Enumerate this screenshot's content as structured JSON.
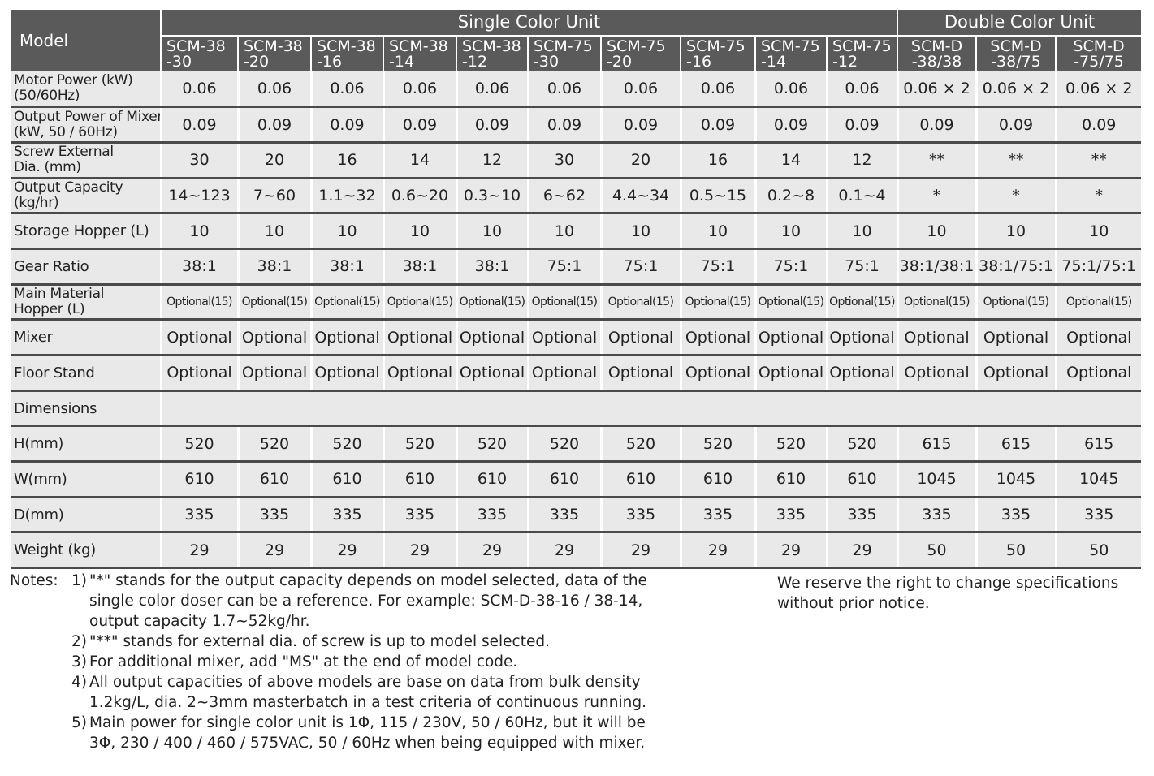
{
  "header": {
    "model": "Model",
    "groups": [
      "Single Color Unit",
      "Double Color Unit"
    ],
    "models": [
      [
        "SCM-38",
        "-30"
      ],
      [
        "SCM-38",
        "-20"
      ],
      [
        "SCM-38",
        "-16"
      ],
      [
        "SCM-38",
        "-14"
      ],
      [
        "SCM-38",
        "-12"
      ],
      [
        "SCM-75",
        "-30"
      ],
      [
        "SCM-75",
        "-20"
      ],
      [
        "SCM-75",
        "-16"
      ],
      [
        "SCM-75",
        "-14"
      ],
      [
        "SCM-75",
        "-12"
      ],
      [
        "SCM-D",
        "-38/38"
      ],
      [
        "SCM-D",
        "-38/75"
      ],
      [
        "SCM-D",
        "-75/75"
      ]
    ]
  },
  "table": {
    "rows": [
      {
        "label": [
          "Motor Power (kW)",
          "(50/60Hz)"
        ],
        "cells": [
          "0.06",
          "0.06",
          "0.06",
          "0.06",
          "0.06",
          "0.06",
          "0.06",
          "0.06",
          "0.06",
          "0.06",
          "0.06 × 2",
          "0.06 × 2",
          "0.06 × 2"
        ]
      },
      {
        "label": [
          "Output Power of Mixer",
          "(kW, 50 / 60Hz)"
        ],
        "cells": [
          "0.09",
          "0.09",
          "0.09",
          "0.09",
          "0.09",
          "0.09",
          "0.09",
          "0.09",
          "0.09",
          "0.09",
          "0.09",
          "0.09",
          "0.09"
        ]
      },
      {
        "label": [
          "Screw External",
          "Dia. (mm)"
        ],
        "cells": [
          "30",
          "20",
          "16",
          "14",
          "12",
          "30",
          "20",
          "16",
          "14",
          "12",
          "**",
          "**",
          "**"
        ]
      },
      {
        "label": [
          "Output Capacity",
          "(kg/hr)"
        ],
        "cells": [
          "14~123",
          "7~60",
          "1.1~32",
          "0.6~20",
          "0.3~10",
          "6~62",
          "4.4~34",
          "0.5~15",
          "0.2~8",
          "0.1~4",
          "*",
          "*",
          "*"
        ]
      },
      {
        "label": [
          "Storage Hopper (L)"
        ],
        "cells": [
          "10",
          "10",
          "10",
          "10",
          "10",
          "10",
          "10",
          "10",
          "10",
          "10",
          "10",
          "10",
          "10"
        ]
      },
      {
        "label": [
          "Gear Ratio"
        ],
        "cells": [
          "38:1",
          "38:1",
          "38:1",
          "38:1",
          "38:1",
          "75:1",
          "75:1",
          "75:1",
          "75:1",
          "75:1",
          "38:1/38:1",
          "38:1/75:1",
          "75:1/75:1"
        ]
      },
      {
        "label": [
          "Main Material",
          "Hopper (L)"
        ],
        "cells": [
          "Optional(15)",
          "Optional(15)",
          "Optional(15)",
          "Optional(15)",
          "Optional(15)",
          "Optional(15)",
          "Optional(15)",
          "Optional(15)",
          "Optional(15)",
          "Optional(15)",
          "Optional(15)",
          "Optional(15)",
          "Optional(15)"
        ]
      },
      {
        "label": [
          "Mixer"
        ],
        "cells": [
          "Optional",
          "Optional",
          "Optional",
          "Optional",
          "Optional",
          "Optional",
          "Optional",
          "Optional",
          "Optional",
          "Optional",
          "Optional",
          "Optional",
          "Optional"
        ]
      },
      {
        "label": [
          "Floor Stand"
        ],
        "cells": [
          "Optional",
          "Optional",
          "Optional",
          "Optional",
          "Optional",
          "Optional",
          "Optional",
          "Optional",
          "Optional",
          "Optional",
          "Optional",
          "Optional",
          "Optional"
        ]
      },
      {
        "label": [
          "Dimensions"
        ]
      },
      {
        "label": [
          "H(mm)"
        ],
        "cells": [
          "520",
          "520",
          "520",
          "520",
          "520",
          "520",
          "520",
          "520",
          "520",
          "520",
          "615",
          "615",
          "615"
        ]
      },
      {
        "label": [
          "W(mm)"
        ],
        "cells": [
          "610",
          "610",
          "610",
          "610",
          "610",
          "610",
          "610",
          "610",
          "610",
          "610",
          "1045",
          "1045",
          "1045"
        ]
      },
      {
        "label": [
          "D(mm)"
        ],
        "cells": [
          "335",
          "335",
          "335",
          "335",
          "335",
          "335",
          "335",
          "335",
          "335",
          "335",
          "335",
          "335",
          "335"
        ]
      },
      {
        "label": [
          "Weight (kg)"
        ],
        "cells": [
          "29",
          "29",
          "29",
          "29",
          "29",
          "29",
          "29",
          "29",
          "29",
          "29",
          "50",
          "50",
          "50"
        ]
      }
    ]
  },
  "notes": {
    "heading": "Notes:",
    "items": [
      {
        "marker": "1)",
        "lines": [
          "\"*\" stands for the output capacity depends on model selected, data of the",
          "single color doser can be a reference. For example: SCM-D-38-16 / 38-14,",
          "output capacity 1.7~52kg/hr."
        ]
      },
      {
        "marker": "2)",
        "lines": [
          "\"**\" stands for external dia. of screw is up to model selected."
        ]
      },
      {
        "marker": "3)",
        "lines": [
          "For additional mixer, add \"MS\" at the end of model code."
        ]
      },
      {
        "marker": "4)",
        "lines": [
          "All output capacities of above models are base on data from bulk density",
          "1.2kg/L, dia. 2~3mm masterbatch in a test criteria of continuous running."
        ]
      },
      {
        "marker": "5)",
        "lines": [
          "Main power for single color unit is 1Φ, 115 / 230V, 50 / 60Hz, but it will be",
          "3Φ, 230 / 400 / 460 / 575VAC, 50 / 60Hz when being equipped with mixer."
        ]
      }
    ],
    "disclaimer": [
      "We reserve the right to change specifications",
      "without prior notice."
    ]
  }
}
